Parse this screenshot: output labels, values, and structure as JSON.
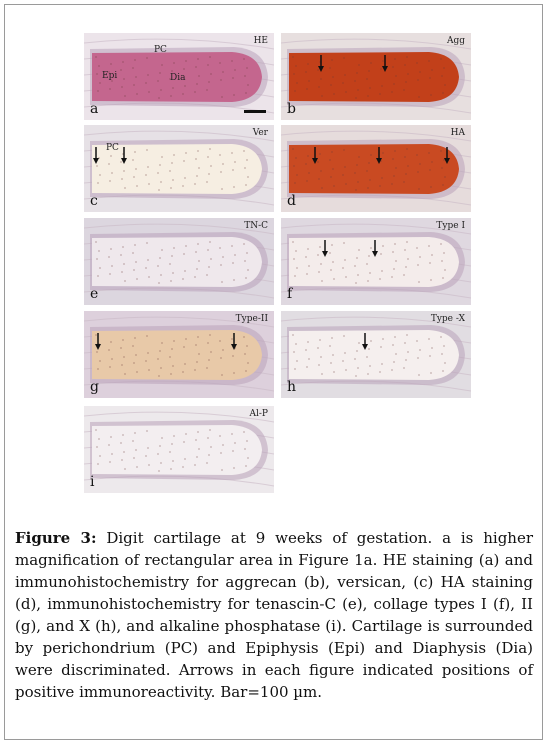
{
  "figure": {
    "panels": [
      {
        "id": "a",
        "label": "a",
        "stain": "HE",
        "annotations": [
          "Epi",
          "PC",
          "Dia"
        ],
        "arrows": 0,
        "has_scale_bar": true,
        "tissue_color": "#c4668e",
        "bg_color": "#ece4ea"
      },
      {
        "id": "b",
        "label": "b",
        "stain": "Agg",
        "annotations": [],
        "arrows": 2,
        "tissue_color": "#c2401a",
        "bg_color": "#e7dfdf"
      },
      {
        "id": "c",
        "label": "c",
        "stain": "Ver",
        "annotations": [
          "PC"
        ],
        "arrows": 2,
        "tissue_color": "#f6eee2",
        "bg_color": "#e6e1e6"
      },
      {
        "id": "d",
        "label": "d",
        "stain": "HA",
        "annotations": [],
        "arrows": 3,
        "tissue_color": "#c94a22",
        "bg_color": "#e6dcdc"
      },
      {
        "id": "e",
        "label": "e",
        "stain": "TN-C",
        "annotations": [],
        "arrows": 0,
        "tissue_color": "#efe8ec",
        "bg_color": "#dcd6df"
      },
      {
        "id": "f",
        "label": "f",
        "stain": "Type I",
        "annotations": [],
        "arrows": 2,
        "tissue_color": "#f4eceb",
        "bg_color": "#dfd8e0"
      },
      {
        "id": "g",
        "label": "g",
        "stain": "Type-II",
        "annotations": [],
        "arrows": 2,
        "tissue_color": "#e8c9a8",
        "bg_color": "#ddd0dc"
      },
      {
        "id": "h",
        "label": "h",
        "stain": "Type -X",
        "annotations": [],
        "arrows": 1,
        "tissue_color": "#f5efee",
        "bg_color": "#e1dde2"
      },
      {
        "id": "i",
        "label": "i",
        "stain": "Al-P",
        "annotations": [],
        "arrows": 0,
        "tissue_color": "#f3eef0",
        "bg_color": "#ede9ec"
      }
    ]
  },
  "caption": {
    "label": "Figure 3:",
    "text": " Digit cartilage at 9 weeks of gestation. a is higher magnification of rectangular area in Figure 1a. HE staining (a) and immunohistochemistry for aggrecan (b), versican, (c) HA staining (d), immunohistochemistry for tenascin-C (e), collage types I (f), II (g), and X (h), and alkaline phosphatase (i). Cartilage is surrounded by perichondrium (PC) and Epiphysis (Epi) and Diaphysis (Dia) were discriminated. Arrows in each figure indicated positions of positive immunoreactivity. Bar=100 µm."
  }
}
